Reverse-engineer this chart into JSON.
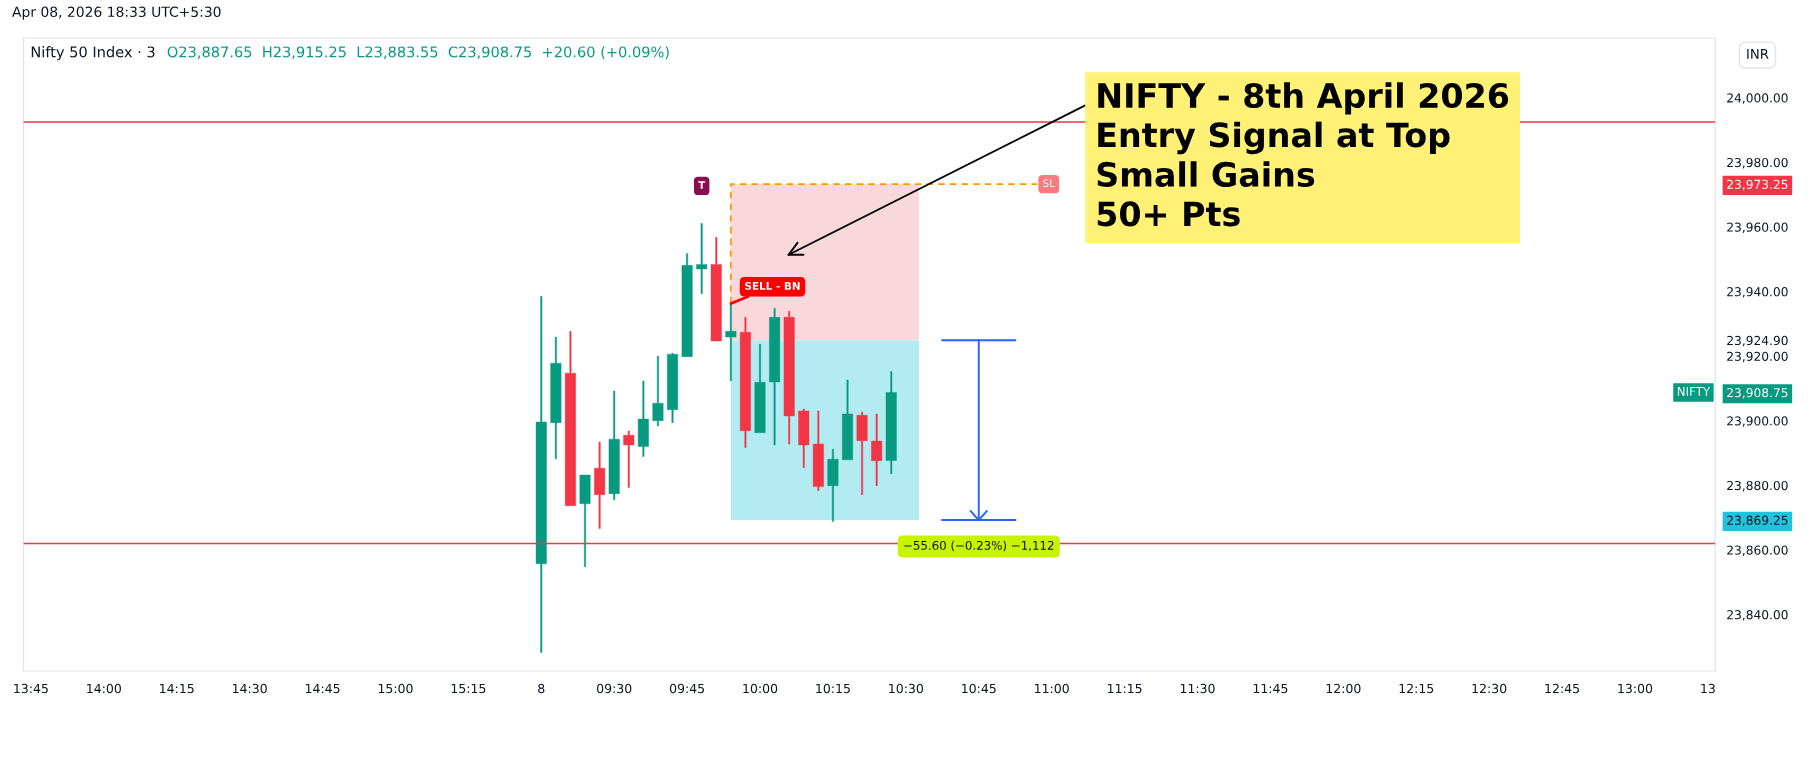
{
  "chart_data": {
    "type": "candlestick",
    "title": "Nifty 50 Index · 3",
    "subtitle": "O23,887.65  H23,915.25  L23,883.55  C23,908.75  +20.60 (+0.09%)",
    "ylabel": "INR",
    "categories": [
      "13:45",
      null,
      null,
      null,
      null,
      "14:00",
      null,
      null,
      null,
      null,
      "14:15",
      null,
      null,
      null,
      null,
      "14:30",
      null,
      null,
      null,
      null,
      "14:45",
      null,
      null,
      null,
      null,
      "15:00",
      null,
      null,
      null,
      null,
      "15:15",
      null,
      null,
      null,
      null,
      "8",
      null,
      null,
      null,
      null,
      "09:30",
      null,
      null,
      null,
      null,
      "09:45",
      null,
      null,
      null,
      null,
      "10:00",
      null,
      null,
      null,
      null,
      "10:15",
      null,
      null,
      null,
      null,
      "10:30",
      null,
      null,
      null,
      null,
      "10:45",
      null,
      null,
      null,
      null,
      "11:00",
      null,
      null,
      null,
      null,
      "11:15",
      null,
      null,
      null,
      null,
      "11:30",
      null,
      null,
      null,
      null,
      "11:45",
      null,
      null,
      null,
      null,
      "12:00",
      null,
      null,
      null,
      null,
      "12:15",
      null,
      null,
      null,
      null,
      "12:30",
      null,
      null,
      null,
      null,
      "12:45",
      null,
      null,
      null,
      null,
      "13:00",
      null,
      null,
      null,
      null,
      "13"
    ],
    "ohlc": [
      null,
      null,
      null,
      null,
      null,
      null,
      null,
      null,
      null,
      null,
      null,
      null,
      null,
      null,
      null,
      null,
      null,
      null,
      null,
      null,
      null,
      null,
      null,
      null,
      null,
      null,
      null,
      null,
      null,
      null,
      null,
      null,
      null,
      null,
      null,
      [
        23855.7,
        23938.5,
        23828.2,
        23899.6
      ],
      [
        23899.4,
        23925.9,
        23888.2,
        23917.8
      ],
      [
        23914.7,
        23927.7,
        23873.7,
        23873.7
      ],
      [
        23874.3,
        23883.2,
        23854.8,
        23883.2
      ],
      [
        23885.3,
        23893.4,
        23866.6,
        23877.1
      ],
      [
        23877.4,
        23909.2,
        23875.5,
        23894.3
      ],
      [
        23895.5,
        23896.8,
        23879.3,
        23892.5
      ],
      [
        23892.0,
        23912.3,
        23888.9,
        23900.5
      ],
      [
        23900.0,
        23920.0,
        23898.4,
        23905.4
      ],
      [
        23903.4,
        23920.9,
        23899.4,
        23920.6
      ],
      [
        23919.8,
        23951.8,
        23919.8,
        23948.1
      ],
      [
        23947.0,
        23961.1,
        23939.3,
        23948.4
      ],
      [
        23948.4,
        23956.8,
        23924.7,
        23924.7
      ],
      [
        23925.9,
        23936.3,
        23912.4,
        23927.7
      ],
      [
        23927.4,
        23932.0,
        23891.7,
        23896.9
      ],
      [
        23896.3,
        23923.7,
        23896.3,
        23911.9
      ],
      [
        23912.0,
        23934.8,
        23892.5,
        23932.0
      ],
      [
        23932.0,
        23933.9,
        23892.8,
        23901.5
      ],
      [
        23903.0,
        23903.6,
        23885.5,
        23892.5
      ],
      [
        23892.8,
        23903.0,
        23878.3,
        23879.6
      ],
      [
        23879.9,
        23891.2,
        23868.8,
        23888.1
      ],
      [
        23887.9,
        23912.6,
        23887.9,
        23902.1
      ],
      [
        23901.7,
        23902.7,
        23877.1,
        23893.8
      ],
      [
        23893.7,
        23902.1,
        23879.9,
        23887.6
      ],
      [
        23887.65,
        23915.25,
        23883.55,
        23908.75
      ],
      null,
      null,
      null,
      null,
      null,
      null,
      null,
      null,
      null,
      null,
      null,
      null,
      null,
      null,
      null,
      null,
      null,
      null,
      null,
      null,
      null,
      null,
      null,
      null,
      null,
      null,
      null,
      null,
      null,
      null,
      null,
      null,
      null,
      null,
      null,
      null,
      null,
      null,
      null,
      null,
      null,
      null,
      null,
      null,
      null,
      null,
      null,
      null,
      null,
      null,
      null,
      null,
      null,
      null,
      null,
      null
    ],
    "colors": [
      null,
      null,
      null,
      null,
      null,
      null,
      null,
      null,
      null,
      null,
      null,
      null,
      null,
      null,
      null,
      null,
      null,
      null,
      null,
      null,
      null,
      null,
      null,
      null,
      null,
      null,
      null,
      null,
      null,
      null,
      null,
      null,
      null,
      null,
      null,
      "#089981",
      "#089981",
      "#f23645",
      "#089981",
      "#f23645",
      "#089981",
      "#f23645",
      "#089981",
      "#089981",
      "#089981",
      "#089981",
      "#089981",
      "#f23645",
      "#089981",
      "#f23645",
      "#089981",
      "#089981",
      "#f23645",
      "#f23645",
      "#f23645",
      "#089981",
      "#089981",
      "#f23645",
      "#f23645",
      "#089981",
      null,
      null,
      null,
      null,
      null,
      null,
      null,
      null,
      null,
      null,
      null,
      null,
      null,
      null,
      null,
      null,
      null,
      null,
      null,
      null,
      null,
      null,
      null,
      null,
      null,
      null,
      null,
      null,
      null,
      null,
      null,
      null,
      null,
      null,
      null,
      null,
      null,
      null,
      null,
      null,
      null,
      null,
      null,
      null,
      null,
      null,
      null,
      null,
      null,
      null,
      null,
      null,
      null,
      null,
      null,
      null
    ],
    "series": [
      {
        "type": "line",
        "x": [
          "10:45",
          "10:45"
        ],
        "values": [
          23924.9,
          23869.25
        ],
        "color": "#2962ff"
      }
    ],
    "bands": [
      {
        "axis": "y",
        "from": 23924.9,
        "to": 23973.25,
        "color": "#f9d8db"
      },
      {
        "axis": "y",
        "from": 23869.25,
        "to": 23924.9,
        "color": "#b2ebf2"
      }
    ],
    "ylim": [
      23822.5,
      24018.5
    ],
    "yticks": [
      {
        "value": 23840,
        "label": "23,840.00"
      },
      {
        "value": 23860,
        "label": "23,860.00"
      },
      {
        "value": 23880,
        "label": "23,880.00"
      },
      {
        "value": 23900,
        "label": "23,900.00"
      },
      {
        "value": 23920,
        "label": "23,920.00"
      },
      {
        "value": 23940,
        "label": "23,940.00"
      },
      {
        "value": 23960,
        "label": "23,960.00"
      },
      {
        "value": 23980,
        "label": "23,980.00"
      },
      {
        "value": 24000,
        "label": "24,000.00"
      },
      {
        "value": 23924.9,
        "label": "23,924.90"
      },
      {
        "value": 23973.25,
        "label": "23,973.25"
      },
      {
        "value": 23908.75,
        "label": "23,908.75"
      },
      {
        "value": 23869.25,
        "label": "23,869.25"
      }
    ],
    "ref_lines": [
      {
        "axis": "y",
        "value": 23992.5,
        "color": "#f23645"
      },
      {
        "axis": "y",
        "value": 23862,
        "color": "#f23645"
      }
    ],
    "annotations": [
      "Apr 08, 2026 18:33 UTC+5:30",
      "NIFTY - 8th April 2026\nEntry Signal at Top\nSmall Gains\n50+ Pts",
      "T",
      {
        "text": "SELL - BN",
        "y": 23936.3
      },
      {
        "text": "SL",
        "y": 23973.25
      },
      {
        "text": "NIFTY",
        "y": 23908.75
      },
      {
        "text": "−55.60 (−0.23%) −1,112",
        "x": "10:45",
        "y": 23869.25
      }
    ]
  }
}
